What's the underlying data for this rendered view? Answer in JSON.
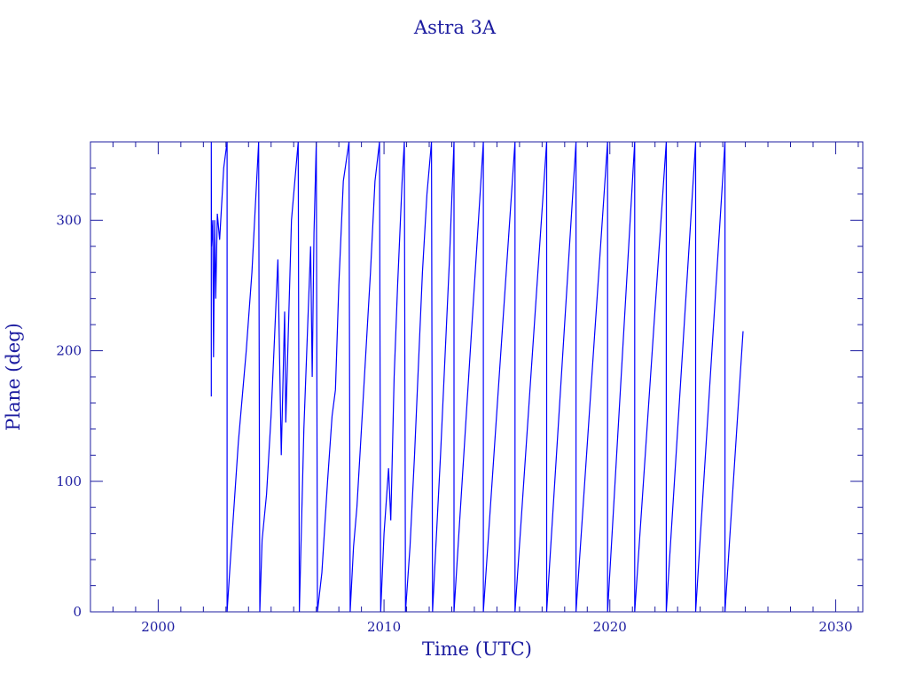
{
  "chart_data": {
    "type": "line",
    "title": "Astra 3A",
    "xlabel": "Time (UTC)",
    "ylabel": "Plane (deg)",
    "xlim": [
      1997,
      2031.2
    ],
    "ylim": [
      0,
      360
    ],
    "x_ticks": [
      2000,
      2010,
      2020,
      2030
    ],
    "y_ticks": [
      0,
      100,
      200,
      300
    ],
    "x_tick_labels": [
      "2000",
      "2010",
      "2020",
      "2030"
    ],
    "y_tick_labels": [
      "0",
      "100",
      "200",
      "300"
    ],
    "grid": false,
    "colors": {
      "line": "#0000ff",
      "frame": "#1c1ca0"
    },
    "series": [
      {
        "values": [
          [
            2002.35,
            165
          ],
          [
            2002.35,
            360
          ],
          [
            2002.36,
            280
          ],
          [
            2002.42,
            300
          ],
          [
            2002.45,
            195
          ],
          [
            2002.5,
            300
          ],
          [
            2002.55,
            240
          ],
          [
            2002.62,
            305
          ],
          [
            2002.72,
            285
          ],
          [
            2002.9,
            340
          ],
          [
            2003.05,
            360
          ],
          [
            2003.05,
            0
          ],
          [
            2003.2,
            40
          ],
          [
            2003.55,
            130
          ],
          [
            2003.9,
            200
          ],
          [
            2004.15,
            260
          ],
          [
            2004.45,
            360
          ],
          [
            2004.5,
            0
          ],
          [
            2004.6,
            55
          ],
          [
            2004.8,
            90
          ],
          [
            2005.0,
            150
          ],
          [
            2005.15,
            210
          ],
          [
            2005.3,
            270
          ],
          [
            2005.45,
            120
          ],
          [
            2005.6,
            230
          ],
          [
            2005.65,
            145
          ],
          [
            2005.9,
            300
          ],
          [
            2006.2,
            360
          ],
          [
            2006.25,
            0
          ],
          [
            2006.45,
            140
          ],
          [
            2006.6,
            210
          ],
          [
            2006.75,
            280
          ],
          [
            2006.82,
            180
          ],
          [
            2006.9,
            290
          ],
          [
            2007.0,
            360
          ],
          [
            2007.05,
            0
          ],
          [
            2007.25,
            30
          ],
          [
            2007.5,
            100
          ],
          [
            2007.7,
            150
          ],
          [
            2007.85,
            170
          ],
          [
            2008.0,
            250
          ],
          [
            2008.2,
            330
          ],
          [
            2008.45,
            360
          ],
          [
            2008.5,
            0
          ],
          [
            2008.65,
            50
          ],
          [
            2008.8,
            80
          ],
          [
            2009.0,
            140
          ],
          [
            2009.2,
            200
          ],
          [
            2009.4,
            260
          ],
          [
            2009.6,
            330
          ],
          [
            2009.8,
            360
          ],
          [
            2009.85,
            0
          ],
          [
            2010.0,
            60
          ],
          [
            2010.2,
            110
          ],
          [
            2010.3,
            70
          ],
          [
            2010.45,
            180
          ],
          [
            2010.6,
            250
          ],
          [
            2010.8,
            330
          ],
          [
            2010.9,
            360
          ],
          [
            2010.95,
            0
          ],
          [
            2011.15,
            50
          ],
          [
            2011.35,
            120
          ],
          [
            2011.5,
            180
          ],
          [
            2011.7,
            260
          ],
          [
            2011.9,
            320
          ],
          [
            2012.1,
            360
          ],
          [
            2012.15,
            0
          ],
          [
            2012.5,
            120
          ],
          [
            2012.9,
            270
          ],
          [
            2013.1,
            360
          ],
          [
            2013.1,
            0
          ],
          [
            2014.4,
            360
          ],
          [
            2014.4,
            0
          ],
          [
            2015.8,
            360
          ],
          [
            2015.8,
            0
          ],
          [
            2017.2,
            360
          ],
          [
            2017.2,
            0
          ],
          [
            2018.5,
            360
          ],
          [
            2018.5,
            0
          ],
          [
            2019.9,
            360
          ],
          [
            2019.9,
            0
          ],
          [
            2021.1,
            360
          ],
          [
            2021.1,
            0
          ],
          [
            2022.5,
            360
          ],
          [
            2022.5,
            0
          ],
          [
            2023.8,
            360
          ],
          [
            2023.8,
            0
          ],
          [
            2025.1,
            360
          ],
          [
            2025.1,
            0
          ],
          [
            2025.9,
            215
          ]
        ]
      }
    ]
  }
}
